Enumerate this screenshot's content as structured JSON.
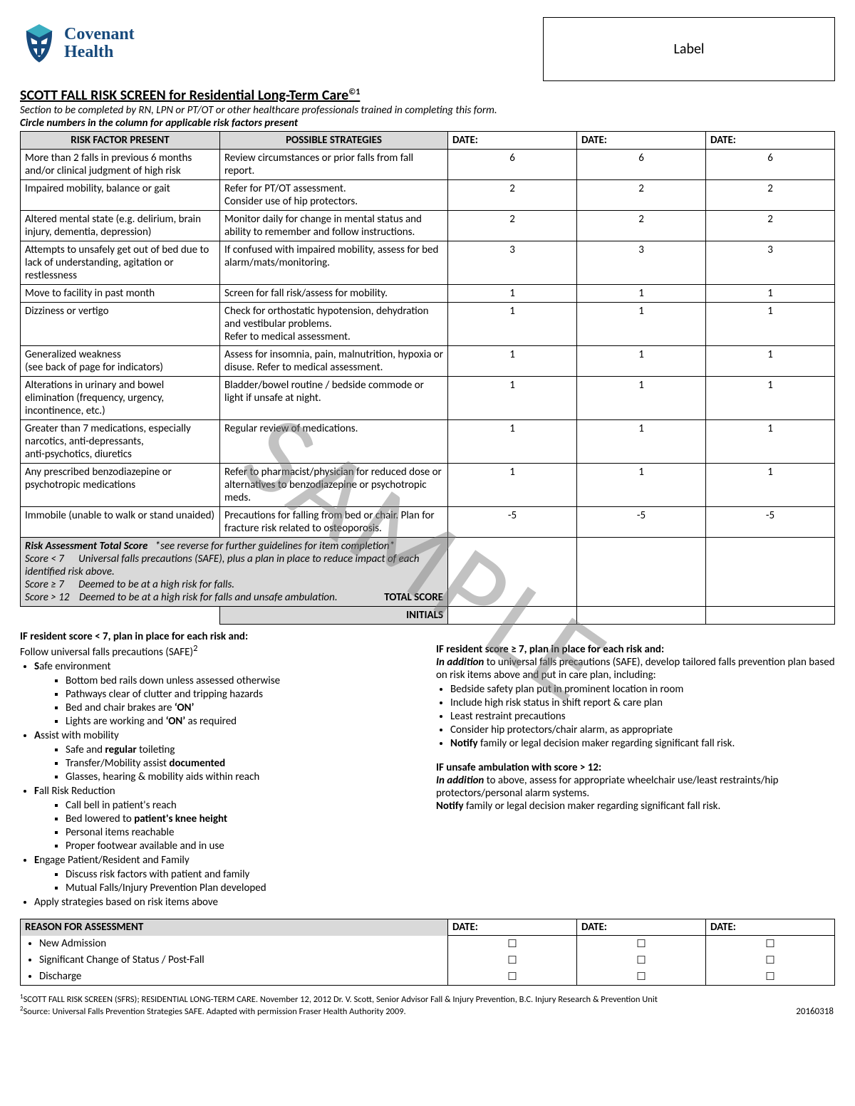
{
  "logo": {
    "line1": "Covenant",
    "line2": "Health"
  },
  "label_box": "Label",
  "title": "SCOTT FALL RISK SCREEN for Residential Long-Term Care",
  "title_sup": "©1",
  "instr1": "Section to be completed by RN, LPN or PT/OT or other healthcare professionals trained in completing this form.",
  "instr2": "Circle numbers in the column for applicable risk factors present",
  "hdr_risk": "RISK FACTOR PRESENT",
  "hdr_strat": "POSSIBLE STRATEGIES",
  "hdr_date": "DATE:",
  "rows": [
    {
      "r": "More than 2 falls in previous 6 months and/or clinical judgment of high risk",
      "s": "Review circumstances or prior falls from fall report.",
      "v": "6"
    },
    {
      "r": "Impaired mobility, balance or gait",
      "s": "Refer for PT/OT assessment.\nConsider use of hip protectors.",
      "v": "2"
    },
    {
      "r": "Altered mental state (e.g. delirium, brain injury, dementia, depression)",
      "s": "Monitor daily for change in mental status and ability to remember and follow instructions.",
      "v": "2"
    },
    {
      "r": "Attempts to unsafely get out of bed due to lack of understanding, agitation or restlessness",
      "s": "If confused with impaired mobility, assess for bed alarm/mats/monitoring.",
      "v": "3"
    },
    {
      "r": "Move to facility in past month",
      "s": "Screen for fall risk/assess for mobility.",
      "v": "1"
    },
    {
      "r": "Dizziness or vertigo",
      "s": "Check for orthostatic hypotension, dehydration and vestibular problems.\nRefer to medical assessment.",
      "v": "1"
    },
    {
      "r": "Generalized weakness\n(see back of page for indicators)",
      "s": "Assess for insomnia, pain, malnutrition, hypoxia or disuse. Refer to medical assessment.",
      "v": "1"
    },
    {
      "r": "Alterations in urinary and bowel elimination (frequency, urgency, incontinence, etc.)",
      "s": "Bladder/bowel routine / bedside commode or light if unsafe at night.",
      "v": "1"
    },
    {
      "r": "Greater than 7 medications, especially narcotics, anti-depressants,\nanti-psychotics, diuretics",
      "s": "Regular review of medications.",
      "v": "1"
    },
    {
      "r": "Any prescribed benzodiazepine or psychotropic medications",
      "s": "Refer to pharmacist/physician for reduced dose or alternatives to benzodiazepine or psychotropic meds.",
      "v": "1"
    },
    {
      "r": "Immobile (unable to walk or stand unaided)",
      "s": "Precautions for falling from bed or chair. Plan for fracture risk related to osteoporosis.",
      "v": "-5"
    }
  ],
  "guide": {
    "title": "Risk Assessment Total Score",
    "note": "*see reverse for further guidelines for item completion*",
    "l1a": "Score < 7",
    "l1b": "Universal falls precautions (SAFE), plus a plan in place to reduce impact of each identified risk above.",
    "l2a": "Score ≥ 7",
    "l2b": "Deemed to be at a high risk for falls.",
    "l3a": "Score > 12",
    "l3b": "Deemed to be at a high risk for falls and unsafe ambulation.",
    "ts": "TOTAL SCORE"
  },
  "initials": "INITIALS",
  "left": {
    "hdr": "IF resident score < 7, plan in place for each risk and:",
    "sub": "Follow universal falls precautions (SAFE)",
    "sup": "2",
    "safe": {
      "S": "afe environment",
      "S_items": [
        "Bottom bed rails down unless assessed otherwise",
        "Pathways clear of clutter and tripping hazards",
        "Bed and chair brakes are ‘ON’",
        "Lights are working and ‘ON’ as required"
      ],
      "A": "ssist with mobility",
      "A_items": [
        "Safe and regular toileting",
        "Transfer/Mobility assist documented",
        "Glasses, hearing & mobility aids within reach"
      ],
      "F": "all Risk Reduction",
      "F_items": [
        "Call bell in patient's reach",
        "Bed lowered to patient's knee height",
        "Personal items reachable",
        "Proper footwear available and in use"
      ],
      "E": "ngage Patient/Resident and Family",
      "E_items": [
        "Discuss risk factors with patient and family",
        "Mutual Falls/Injury Prevention Plan developed"
      ]
    },
    "apply": "Apply strategies based on risk items above"
  },
  "right": {
    "hdr1": "IF resident score ≥ 7, plan in place for each risk and:",
    "p1a": "In addition",
    "p1b": " to universal falls precautions (SAFE), develop tailored falls prevention plan based on risk items above and put in care plan, including:",
    "items1": [
      "Bedside safety plan put in prominent location in room",
      "Include high risk status in shift report & care plan",
      "Least restraint precautions",
      "Consider hip protectors/chair alarm, as appropriate",
      "Notify family or legal decision maker regarding significant fall risk."
    ],
    "hdr2": "IF unsafe ambulation with score > 12:",
    "p2a": "In addition",
    "p2b": " to above, assess for appropriate wheelchair use/least restraints/hip protectors/personal alarm systems.",
    "p2c": "Notify",
    "p2d": " family or legal decision maker regarding significant fall risk."
  },
  "reason": {
    "hdr": "REASON FOR ASSESSMENT",
    "items": [
      "New Admission",
      "Significant Change of Status / Post-Fall",
      "Discharge"
    ],
    "date": "DATE:",
    "box": "☐"
  },
  "fn1": "SCOTT FALL RISK SCREEN (SFRS); RESIDENTIAL LONG-TERM CARE. November 12, 2012 Dr. V. Scott, Senior Advisor Fall & Injury Prevention, B.C. Injury Research & Prevention Unit",
  "fn2": "Source:  Universal Falls Prevention Strategies SAFE. Adapted with permission Fraser Health Authority 2009.",
  "date_code": "20160318",
  "watermark": "SAMPLE"
}
